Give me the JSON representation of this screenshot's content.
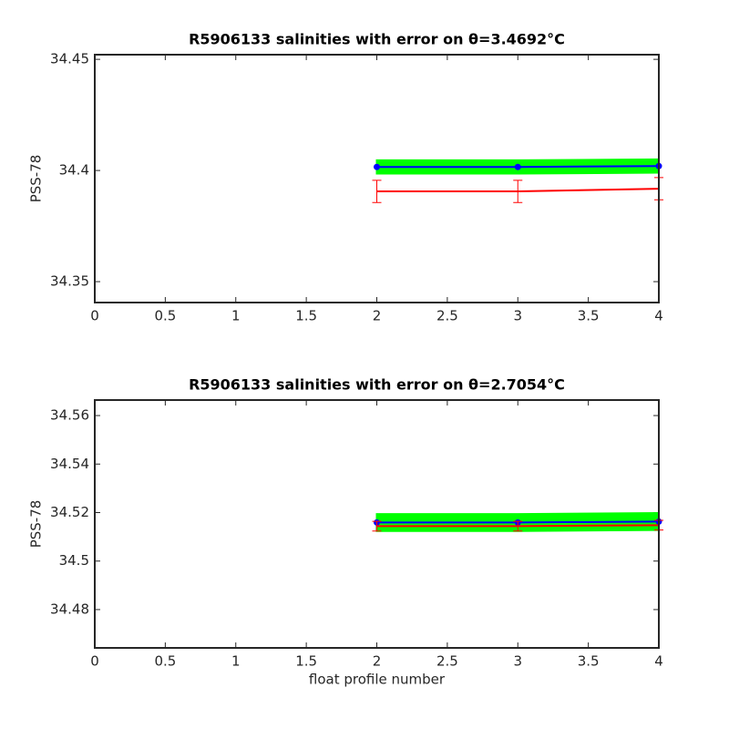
{
  "chart_data": [
    {
      "type": "line",
      "title": "R5906133 salinities with error on θ=3.4692°C",
      "ylabel": "PSS-78",
      "x": [
        2,
        3,
        4
      ],
      "xlim": [
        0,
        4
      ],
      "xticks": [
        0,
        0.5,
        1,
        1.5,
        2,
        2.5,
        3,
        3.5,
        4
      ],
      "ylim": [
        34.3406,
        34.4521
      ],
      "yticks": [
        34.35,
        34.4,
        34.45
      ],
      "series": [
        {
          "color": "#0000ff",
          "values": [
            34.4016,
            34.4016,
            34.402
          ],
          "band": [
            0.003,
            0.003,
            0.003
          ],
          "band_color": "#00ff00"
        },
        {
          "color": "#ff0000",
          "values": [
            34.3906,
            34.3906,
            34.3918
          ],
          "errors": [
            0.005,
            0.005,
            0.005
          ]
        }
      ]
    },
    {
      "type": "line",
      "title": "R5906133 salinities with error on θ=2.7054°C",
      "ylabel": "PSS-78",
      "xlabel": "float profile number",
      "x": [
        2,
        3,
        4
      ],
      "xlim": [
        0,
        4
      ],
      "xticks": [
        0,
        0.5,
        1,
        1.5,
        2,
        2.5,
        3,
        3.5,
        4
      ],
      "ylim": [
        34.4642,
        34.5664
      ],
      "yticks": [
        34.48,
        34.5,
        34.52,
        34.54,
        34.56
      ],
      "series": [
        {
          "color": "#0000ff",
          "values": [
            34.5159,
            34.5159,
            34.5163
          ],
          "band": [
            0.0035,
            0.0035,
            0.0035
          ],
          "band_color": "#00ff00"
        },
        {
          "color": "#ff0000",
          "values": [
            34.5144,
            34.5144,
            34.5148
          ],
          "errors": [
            0.002,
            0.002,
            0.002
          ]
        }
      ]
    }
  ]
}
